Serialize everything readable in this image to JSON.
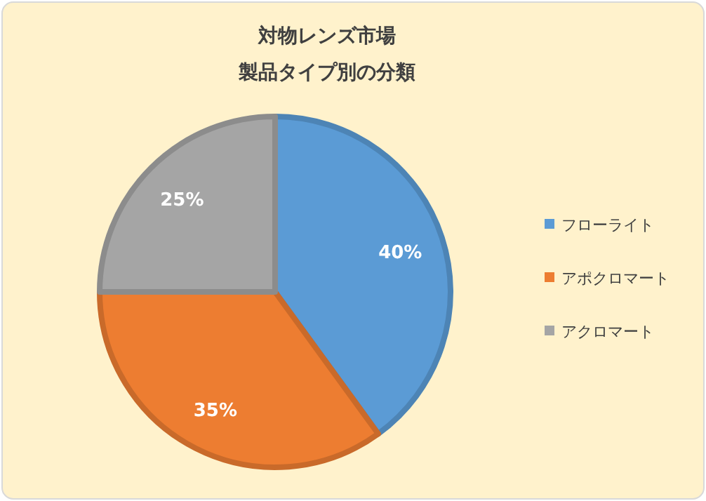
{
  "chart_data": {
    "type": "pie",
    "title": "対物レンズ市場",
    "subtitle": "製品タイプ別の分類",
    "categories": [
      "フローライト",
      "アポクロマート",
      "アクロマート"
    ],
    "values": [
      40,
      35,
      25
    ],
    "colors": [
      "#5b9bd5",
      "#ed7d31",
      "#a5a5a5"
    ],
    "value_labels": [
      "40%",
      "35%",
      "25%"
    ],
    "legend": "right"
  }
}
